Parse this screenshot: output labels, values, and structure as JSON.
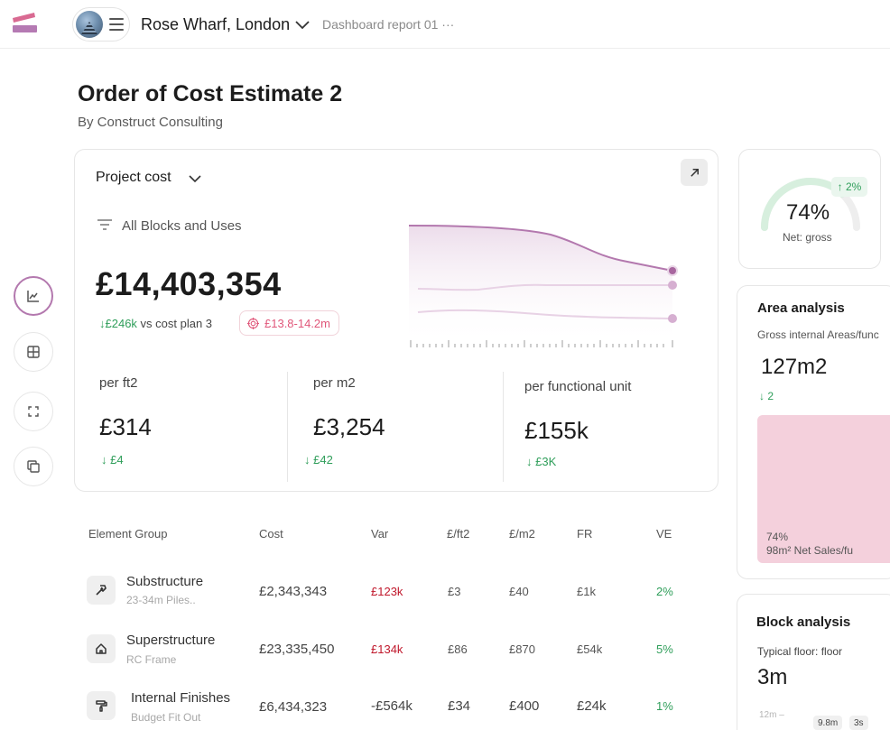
{
  "header": {
    "project_name": "Rose Wharf, London",
    "breadcrumb": "Dashboard report 01 ···"
  },
  "page": {
    "title": "Order of Cost Estimate 2",
    "subtitle": "By Construct Consulting"
  },
  "rail": {
    "icons": [
      "chart-icon",
      "grid-icon",
      "fullscreen-icon",
      "copy-icon"
    ],
    "active_color": "#b378ae"
  },
  "cost_card": {
    "title": "Project cost",
    "filter_label": "All Blocks and Uses",
    "total": "£14,403,354",
    "delta_value": "↓£246k",
    "delta_text": "vs cost plan 3",
    "range": "£13.8-14.2m",
    "metrics": [
      {
        "label": "per ft2",
        "value": "£314",
        "delta": "↓ £4"
      },
      {
        "label": "per m2",
        "value": "£3,254",
        "delta": "↓ £42"
      },
      {
        "label": "per functional unit",
        "value": "£155k",
        "delta": "↓ £3K"
      }
    ],
    "sparkline_color": "#b378ae"
  },
  "table": {
    "headers": [
      "Element Group",
      "Cost",
      "Var",
      "£/ft2",
      "£/m2",
      "FR",
      "VE"
    ],
    "rows": [
      {
        "icon": "hammer-icon",
        "name": "Substructure",
        "sub": "23-34m Piles..",
        "cost": "£2,343,343",
        "var": "£123k",
        "ft2": "£3",
        "m2": "£40",
        "fr": "£1k",
        "ve": "2%"
      },
      {
        "icon": "house-icon",
        "name": "Superstructure",
        "sub": "RC Frame",
        "cost": "£23,335,450",
        "var": "£134k",
        "ft2": "£86",
        "m2": "£870",
        "fr": "£54k",
        "ve": "5%"
      },
      {
        "icon": "paint-roller-icon",
        "name": "Internal Finishes",
        "sub": "Budget Fit Out",
        "cost": "£6,434,323",
        "var": "-£564k",
        "ft2": "£34",
        "m2": "£400",
        "fr": "£24k",
        "ve": "1%"
      }
    ]
  },
  "gauge": {
    "value": "74%",
    "label": "Net: gross",
    "badge": "↑ 2%",
    "fraction": 0.74,
    "fill_color": "#d7efde"
  },
  "area": {
    "title": "Area analysis",
    "subtitle": "Gross internal Areas/func",
    "value": "127m2",
    "delta": "↓ 2",
    "block_pct": "74%",
    "block_label": "98m² Net Sales/fu",
    "block_color": "#f4d0dc"
  },
  "block": {
    "title": "Block analysis",
    "subtitle": "Typical floor: floor",
    "value": "3m",
    "axis_label": "12m –",
    "chips": [
      "9.8m",
      "3s"
    ]
  }
}
